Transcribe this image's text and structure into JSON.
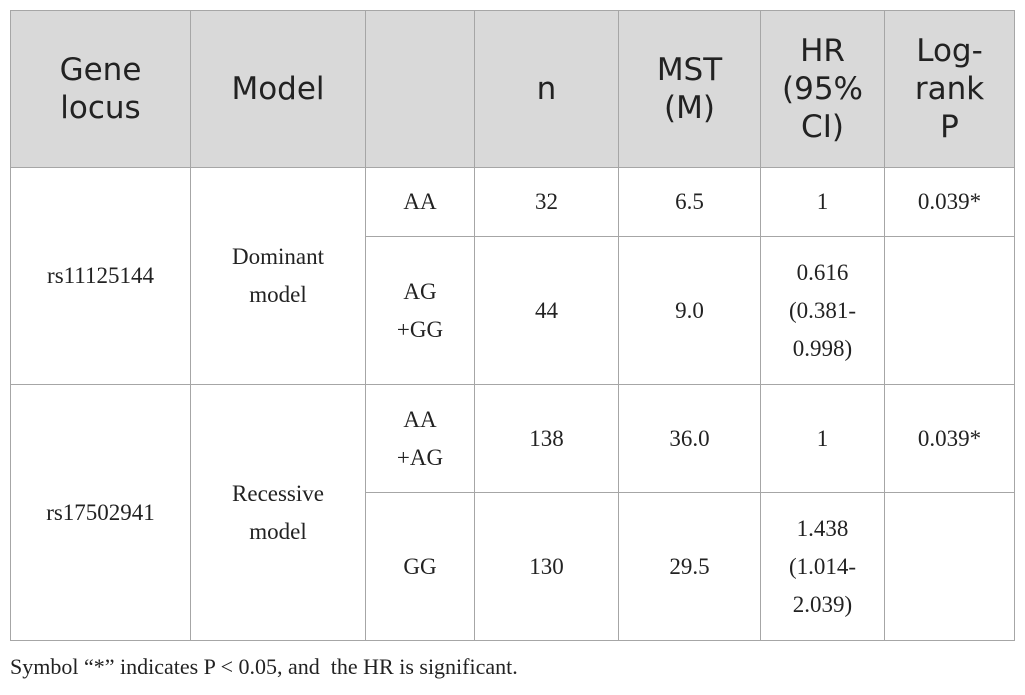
{
  "table": {
    "header": [
      "Gene locus",
      "Model",
      "n",
      "MST (M)",
      "HR (95% CI)",
      "Log-rank P"
    ],
    "rows": [
      [
        "rs11125144",
        "Dominant model",
        "AA",
        "32",
        "6.5",
        "1",
        "0.039*"
      ],
      [
        "AG +GG",
        "44",
        "9.0",
        "0.616 (0.381-0.998)"
      ],
      [
        "rs17502941",
        "Recessive model",
        "AA +AG",
        "138",
        "36.0",
        "1",
        "0.039*"
      ],
      [
        "GG",
        "130",
        "29.5",
        "1.438 (1.014-2.039)"
      ]
    ]
  },
  "footnote": "Symbol “*” indicates P < 0.05, and  the HR is significant."
}
